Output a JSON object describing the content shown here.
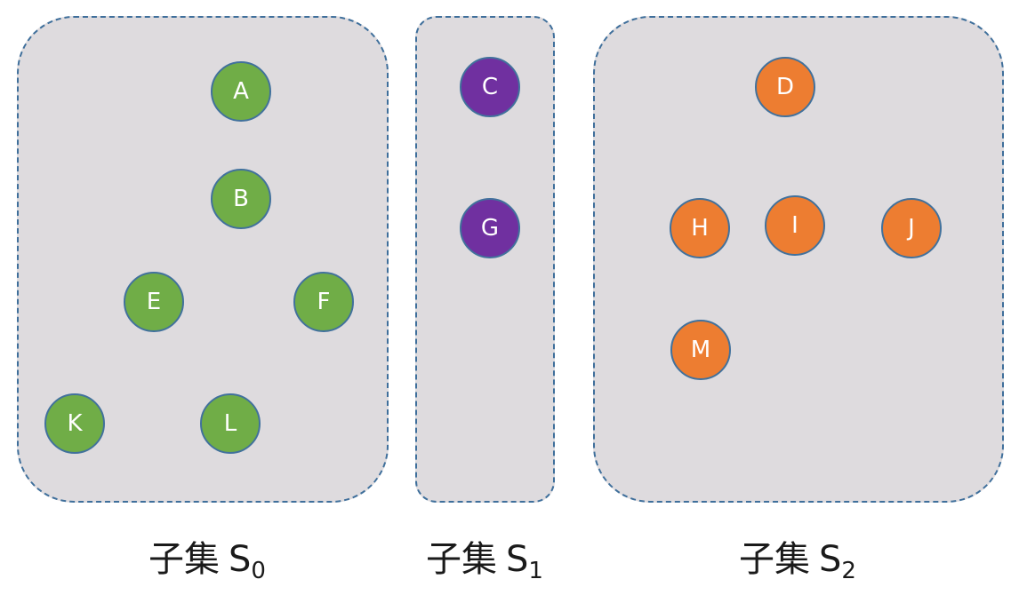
{
  "subsets": [
    {
      "id": "s0",
      "color": "#70ad47",
      "caption": {
        "prefix": "子集",
        "var": "S",
        "sub": "0"
      },
      "nodes": [
        "A",
        "B",
        "E",
        "F",
        "K",
        "L"
      ]
    },
    {
      "id": "s1",
      "color": "#7030a0",
      "caption": {
        "prefix": "子集",
        "var": "S",
        "sub": "1"
      },
      "nodes": [
        "C",
        "G"
      ]
    },
    {
      "id": "s2",
      "color": "#ed7d31",
      "caption": {
        "prefix": "子集",
        "var": "S",
        "sub": "2"
      },
      "nodes": [
        "D",
        "H",
        "I",
        "J",
        "M"
      ]
    }
  ]
}
